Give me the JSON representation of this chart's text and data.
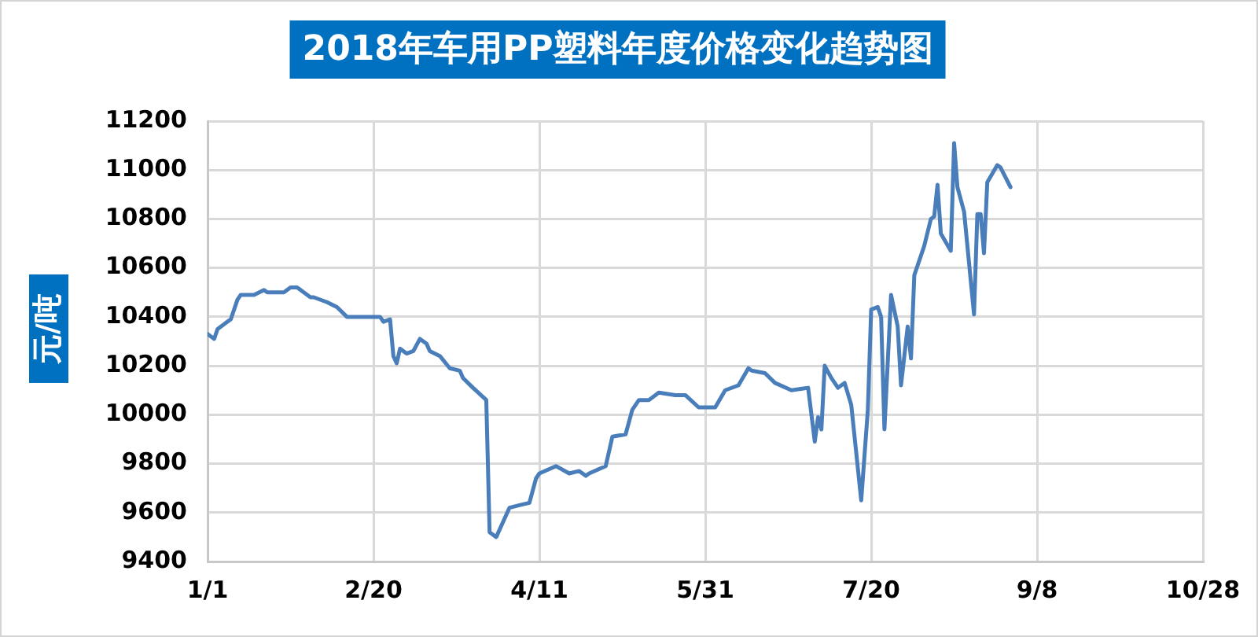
{
  "chart_data": {
    "type": "line",
    "title": "2018年车用PP塑料年度价格变化趋势图",
    "ylabel": "元/吨",
    "xlim": [
      "--01-01",
      "--10-28"
    ],
    "xticks": [
      {
        "value": "--01-01",
        "label": "1/1"
      },
      {
        "value": "--02-20",
        "label": "2/20"
      },
      {
        "value": "--04-11",
        "label": "4/11"
      },
      {
        "value": "--05-31",
        "label": "5/31"
      },
      {
        "value": "--07-20",
        "label": "7/20"
      },
      {
        "value": "--09-08",
        "label": "9/8"
      },
      {
        "value": "--10-28",
        "label": "10/28"
      }
    ],
    "ylim": [
      9400,
      11200
    ],
    "yticks": [
      9400,
      9600,
      9800,
      10000,
      10200,
      10400,
      10600,
      10800,
      11000,
      11200
    ],
    "grid": true,
    "x": [
      "--01-01",
      "--01-03",
      "--01-04",
      "--01-07",
      "--01-08",
      "--01-10",
      "--01-11",
      "--01-15",
      "--01-18",
      "--01-19",
      "--01-24",
      "--01-26",
      "--01-28",
      "--01-30",
      "--02-01",
      "--02-02",
      "--02-06",
      "--02-09",
      "--02-12",
      "--02-15",
      "--02-22",
      "--02-23",
      "--02-25",
      "--02-26",
      "--02-27",
      "--02-28",
      "--03-02",
      "--03-04",
      "--03-06",
      "--03-08",
      "--03-09",
      "--03-12",
      "--03-15",
      "--03-18",
      "--03-19",
      "--03-22",
      "--03-26",
      "--03-27",
      "--03-29",
      "--03-31",
      "--04-02",
      "--04-05",
      "--04-08",
      "--04-10",
      "--04-11",
      "--04-16",
      "--04-20",
      "--04-23",
      "--04-25",
      "--04-26",
      "--05-01",
      "--05-03",
      "--05-07",
      "--05-09",
      "--05-11",
      "--05-14",
      "--05-17",
      "--05-22",
      "--05-25",
      "--05-29",
      "--06-03",
      "--06-06",
      "--06-10",
      "--06-13",
      "--06-14",
      "--06-18",
      "--06-21",
      "--06-26",
      "--07-01",
      "--07-03",
      "--07-04",
      "--07-05",
      "--07-06",
      "--07-08",
      "--07-10",
      "--07-12",
      "--07-14",
      "--07-17",
      "--07-19",
      "--07-20",
      "--07-22",
      "--07-23",
      "--07-24",
      "--07-26",
      "--07-28",
      "--07-29",
      "--07-31",
      "--08-01",
      "--08-02",
      "--08-05",
      "--08-07",
      "--08-08",
      "--08-09",
      "--08-10",
      "--08-13",
      "--08-14",
      "--08-15",
      "--08-17",
      "--08-20",
      "--08-21",
      "--08-22",
      "--08-23",
      "--08-24",
      "--08-27",
      "--08-28",
      "--08-31"
    ],
    "series": [
      {
        "color": "#4a7ebb",
        "values": [
          10330,
          10310,
          10350,
          10380,
          10390,
          10470,
          10490,
          10490,
          10510,
          10500,
          10500,
          10520,
          10520,
          10500,
          10480,
          10480,
          10460,
          10440,
          10400,
          10400,
          10400,
          10380,
          10390,
          10240,
          10210,
          10270,
          10250,
          10260,
          10310,
          10290,
          10260,
          10240,
          10190,
          10180,
          10150,
          10110,
          10060,
          9520,
          9500,
          9560,
          9620,
          9630,
          9640,
          9740,
          9760,
          9790,
          9760,
          9770,
          9750,
          9760,
          9790,
          9910,
          9920,
          10020,
          10060,
          10060,
          10090,
          10080,
          10080,
          10030,
          10030,
          10100,
          10120,
          10190,
          10180,
          10170,
          10130,
          10100,
          10110,
          9890,
          9990,
          9940,
          10200,
          10150,
          10110,
          10130,
          10040,
          9650,
          10020,
          10430,
          10440,
          10400,
          9940,
          10490,
          10360,
          10120,
          10360,
          10230,
          10570,
          10690,
          10800,
          10810,
          10940,
          10740,
          10670,
          11110,
          10930,
          10830,
          10410,
          10820,
          10820,
          10660,
          10950,
          11020,
          11010,
          10930
        ]
      }
    ]
  }
}
